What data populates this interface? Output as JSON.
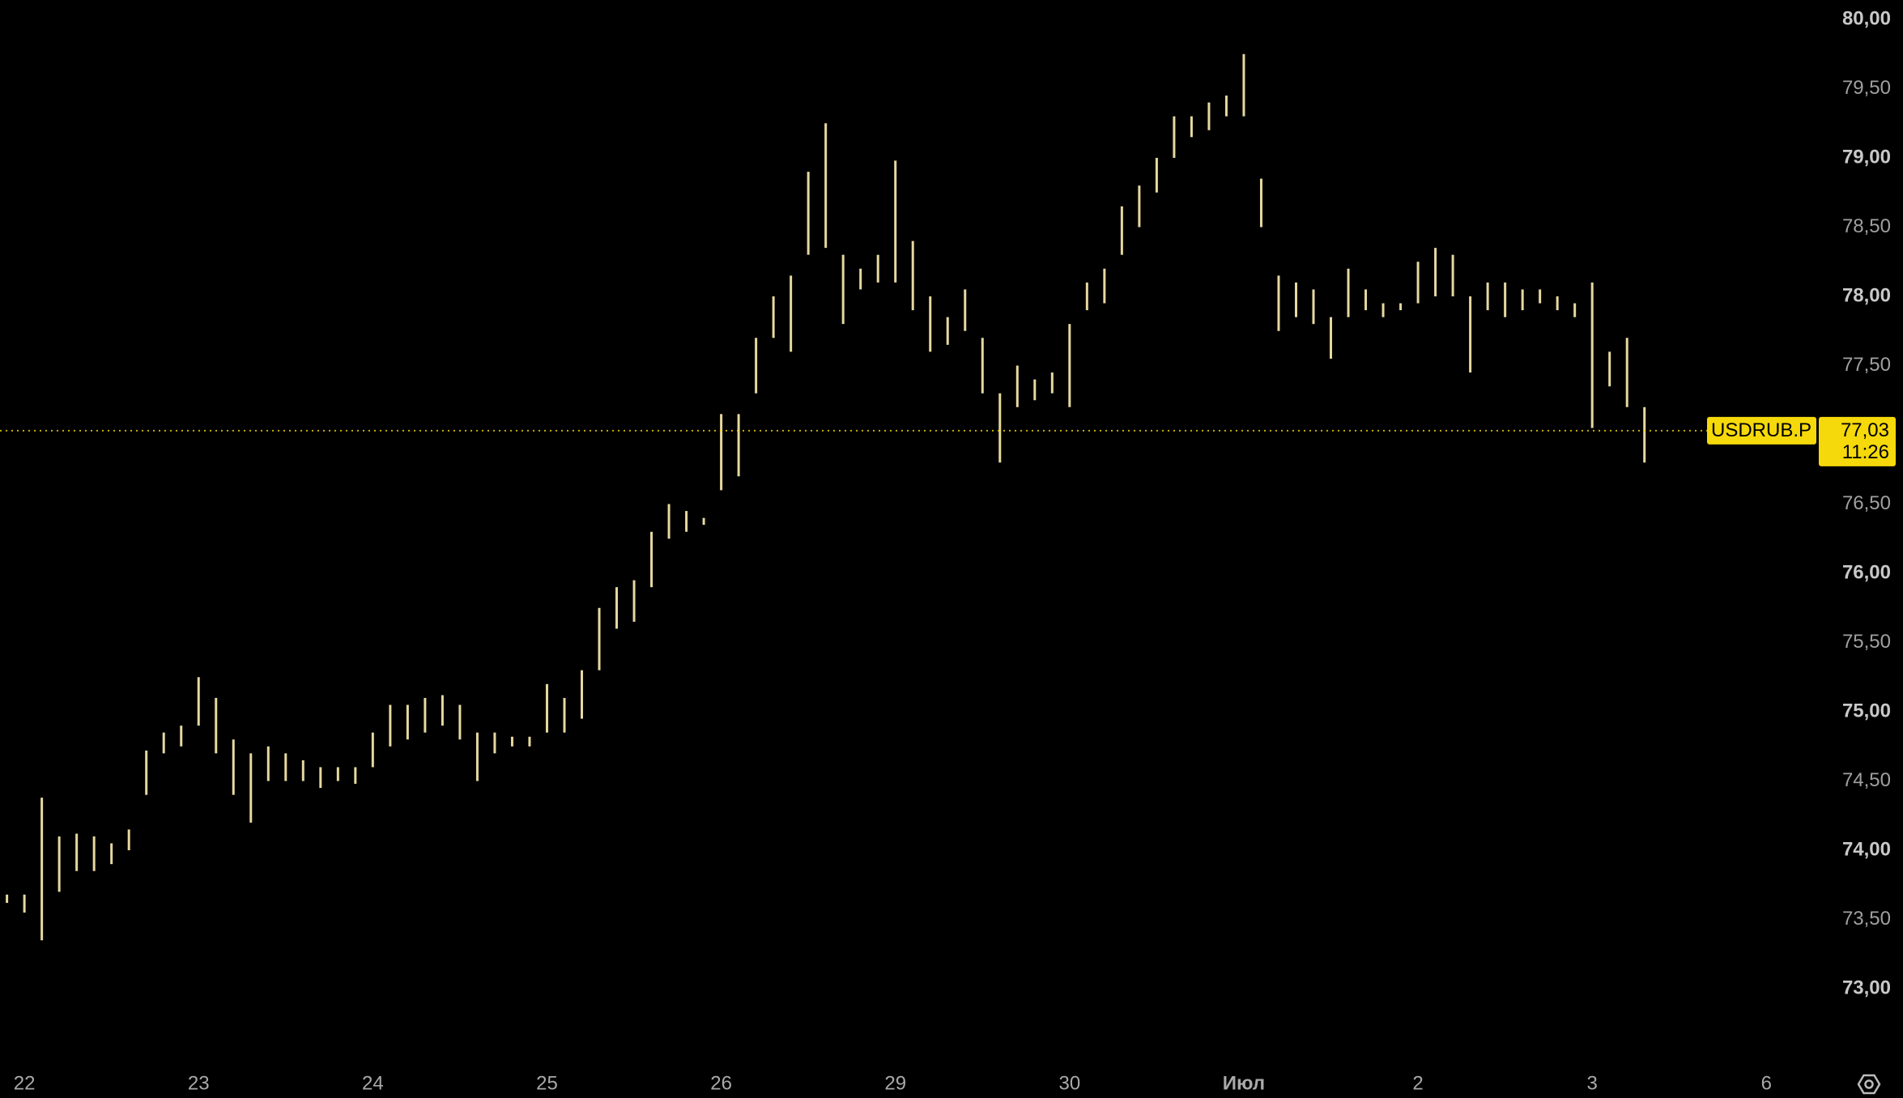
{
  "chart_data": {
    "type": "range",
    "x": [
      -1,
      0,
      1,
      2,
      3,
      4,
      5,
      6,
      7,
      8,
      9,
      10,
      11,
      12,
      13,
      14,
      15,
      16,
      17,
      18,
      19,
      20,
      21,
      22,
      23,
      24,
      25,
      26,
      27,
      28,
      29,
      30,
      31,
      32,
      33,
      34,
      35,
      36,
      37,
      38,
      39,
      40,
      41,
      42,
      43,
      44,
      45,
      46,
      47,
      48,
      49,
      50,
      51,
      52,
      53,
      54,
      55,
      56,
      57,
      58,
      59,
      60,
      61,
      62,
      63,
      64,
      65,
      66,
      67,
      68,
      69,
      70,
      71,
      72,
      73,
      74,
      75,
      76,
      77,
      78,
      79,
      80,
      81,
      82,
      83,
      84,
      85,
      86,
      87,
      88,
      89,
      90,
      91,
      92,
      93
    ],
    "high": [
      73.68,
      73.68,
      74.38,
      74.1,
      74.12,
      74.1,
      74.05,
      74.15,
      74.72,
      74.85,
      74.9,
      75.25,
      75.1,
      74.8,
      74.7,
      74.75,
      74.7,
      74.65,
      74.6,
      74.6,
      74.6,
      74.85,
      75.05,
      75.05,
      75.1,
      75.12,
      75.05,
      74.85,
      74.85,
      74.82,
      74.82,
      75.2,
      75.1,
      75.3,
      75.75,
      75.9,
      75.95,
      76.3,
      76.5,
      76.45,
      76.4,
      77.15,
      77.15,
      77.7,
      78.0,
      78.15,
      78.9,
      79.25,
      78.3,
      78.2,
      78.3,
      78.98,
      78.4,
      78.0,
      77.85,
      78.05,
      77.7,
      77.3,
      77.5,
      77.4,
      77.45,
      77.8,
      78.1,
      78.2,
      78.65,
      78.8,
      79.0,
      79.3,
      79.3,
      79.4,
      79.45,
      79.75,
      78.85,
      78.15,
      78.1,
      78.05,
      77.85,
      78.2,
      78.05,
      77.95,
      77.95,
      78.25,
      78.35,
      78.3,
      78.0,
      78.1,
      78.1,
      78.05,
      78.05,
      78.0,
      77.95,
      78.1,
      77.6,
      77.7,
      77.2
    ],
    "low": [
      73.62,
      73.55,
      73.35,
      73.7,
      73.85,
      73.85,
      73.9,
      74.0,
      74.4,
      74.7,
      74.75,
      74.9,
      74.7,
      74.4,
      74.2,
      74.5,
      74.5,
      74.5,
      74.45,
      74.5,
      74.48,
      74.6,
      74.75,
      74.8,
      74.85,
      74.9,
      74.8,
      74.5,
      74.7,
      74.75,
      74.75,
      74.85,
      74.85,
      74.95,
      75.3,
      75.6,
      75.65,
      75.9,
      76.25,
      76.3,
      76.35,
      76.6,
      76.7,
      77.3,
      77.7,
      77.6,
      78.3,
      78.35,
      77.8,
      78.05,
      78.1,
      78.1,
      77.9,
      77.6,
      77.65,
      77.75,
      77.3,
      76.8,
      77.2,
      77.25,
      77.3,
      77.2,
      77.9,
      77.95,
      78.3,
      78.5,
      78.75,
      79.0,
      79.15,
      79.2,
      79.3,
      79.3,
      78.5,
      77.75,
      77.85,
      77.8,
      77.55,
      77.85,
      77.9,
      77.85,
      77.9,
      77.95,
      78.0,
      78.0,
      77.45,
      77.9,
      77.85,
      77.9,
      77.95,
      77.9,
      77.85,
      77.05,
      77.35,
      77.2,
      76.8
    ],
    "color": "#e6d8a0",
    "xlim": [
      -1.4,
      103.1
    ],
    "ylim": [
      72.48,
      80.14
    ],
    "xticks": [
      {
        "value": 0,
        "label": "22"
      },
      {
        "value": 10,
        "label": "23"
      },
      {
        "value": 20,
        "label": "24"
      },
      {
        "value": 30,
        "label": "25"
      },
      {
        "value": 40,
        "label": "26"
      },
      {
        "value": 50,
        "label": "29"
      },
      {
        "value": 60,
        "label": "30"
      },
      {
        "value": 70,
        "label": "Июл"
      },
      {
        "value": 80,
        "label": "2"
      },
      {
        "value": 90,
        "label": "3"
      },
      {
        "value": 100,
        "label": "6"
      }
    ],
    "yticks": [
      {
        "value": 73,
        "label": "73,00"
      },
      {
        "value": 73.5,
        "label": "73,50"
      },
      {
        "value": 74,
        "label": "74,00"
      },
      {
        "value": 74.5,
        "label": "74,50"
      },
      {
        "value": 75,
        "label": "75,00"
      },
      {
        "value": 75.5,
        "label": "75,50"
      },
      {
        "value": 76,
        "label": "76,00"
      },
      {
        "value": 76.5,
        "label": "76,50"
      },
      {
        "value": 77.5,
        "label": "77,50"
      },
      {
        "value": 78,
        "label": "78,00"
      },
      {
        "value": 78.5,
        "label": "78,50"
      },
      {
        "value": 79,
        "label": "79,00"
      },
      {
        "value": 79.5,
        "label": "79,50"
      },
      {
        "value": 80,
        "label": "80,00"
      }
    ],
    "last_price": {
      "value": 77.03,
      "label": "77,03"
    },
    "symbol": "USDRUB.P",
    "countdown": "11:26",
    "badge_color": "#f5d90a"
  }
}
